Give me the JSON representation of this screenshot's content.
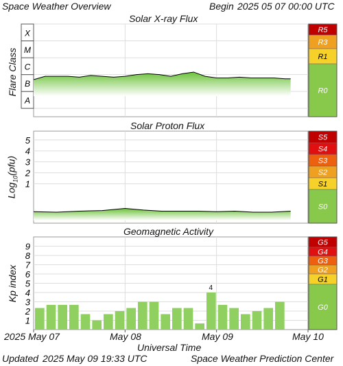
{
  "header": {
    "title": "Space Weather Overview",
    "begin_label": "Begin",
    "begin_value": "2025 05 07 00:00 UTC"
  },
  "footer": {
    "updated_label": "Updated",
    "updated_value": "2025 May 09 19:33 UTC",
    "credit": "Space Weather Prediction Center"
  },
  "x_axis": {
    "label": "Universal Time",
    "ticks": [
      "2025 May 07",
      "May 08",
      "May 09",
      "May 10"
    ]
  },
  "scale_colors": {
    "green": "#88c84a",
    "yellow": "#f5d12a",
    "orange": "#f0a020",
    "orange_red": "#ec6010",
    "red": "#e01010",
    "dark_red": "#c00000",
    "text": "#ffffff",
    "data_line": "#000000",
    "bar_fill": "#8fd060"
  },
  "chart_data": [
    {
      "type": "area",
      "title": "Solar X-ray Flux",
      "ylabel": "Flare Class",
      "y_ticks": [
        "A",
        "B",
        "C",
        "M",
        "X"
      ],
      "ylim": [
        -8.5,
        -3
      ],
      "x": [
        0,
        0.125,
        0.25,
        0.375,
        0.5,
        0.625,
        0.75,
        0.875,
        1.0,
        1.125,
        1.25,
        1.375,
        1.5,
        1.625,
        1.75,
        1.875,
        2.0,
        2.125,
        2.25,
        2.375,
        2.5,
        2.625,
        2.75,
        2.81
      ],
      "x_unit": "days since 2025 May 07 00:00 UTC",
      "values": [
        -6.3,
        -6.1,
        -6.1,
        -6.1,
        -6.15,
        -6.05,
        -6.1,
        -6.15,
        -6.1,
        -6.0,
        -5.95,
        -6.0,
        -6.1,
        -5.95,
        -5.85,
        -6.1,
        -6.2,
        -6.2,
        -6.15,
        -6.2,
        -6.2,
        -6.2,
        -6.25,
        -6.25
      ],
      "scale": {
        "labels": [
          "R5",
          "R3",
          "R1",
          "R0"
        ],
        "colors": [
          "dark_red",
          "orange",
          "yellow",
          "green"
        ]
      }
    },
    {
      "type": "area",
      "title": "Solar Proton Flux",
      "ylabel": "Log10(pfu)",
      "y_ticks": [
        "1",
        "2",
        "3",
        "4",
        "5"
      ],
      "ylim": [
        -2.6,
        5.8
      ],
      "x": [
        0,
        0.25,
        0.5,
        0.75,
        1.0,
        1.2,
        1.4,
        1.6,
        1.8,
        2.0,
        2.2,
        2.4,
        2.6,
        2.81
      ],
      "values": [
        -1.55,
        -1.6,
        -1.5,
        -1.45,
        -1.25,
        -1.4,
        -1.5,
        -1.5,
        -1.5,
        -1.55,
        -1.5,
        -1.6,
        -1.6,
        -1.5
      ],
      "scale": {
        "labels": [
          "S5",
          "S4",
          "S3",
          "S2",
          "S1",
          "S0"
        ],
        "colors": [
          "dark_red",
          "red",
          "orange_red",
          "orange",
          "yellow",
          "green"
        ]
      }
    },
    {
      "type": "bar",
      "title": "Geomagnetic Activity",
      "ylabel": "Kp index",
      "y_ticks": [
        "1",
        "2",
        "3",
        "4",
        "5",
        "6",
        "7",
        "8",
        "9"
      ],
      "ylim": [
        0,
        10
      ],
      "values": [
        2.33,
        2.67,
        2.67,
        2.67,
        1.67,
        1.0,
        1.67,
        2.0,
        2.33,
        3.0,
        3.0,
        1.67,
        2.33,
        2.33,
        0.67,
        4.0,
        2.67,
        2.33,
        1.67,
        2.0,
        2.33,
        3.0
      ],
      "annotation": "4",
      "scale": {
        "labels": [
          "G5",
          "G4",
          "G3",
          "G2",
          "G1",
          "G0"
        ],
        "colors": [
          "dark_red",
          "red",
          "orange_red",
          "orange",
          "yellow",
          "green"
        ]
      }
    }
  ]
}
